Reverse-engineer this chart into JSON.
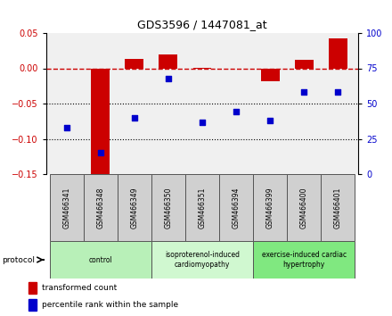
{
  "title": "GDS3596 / 1447081_at",
  "samples": [
    "GSM466341",
    "GSM466348",
    "GSM466349",
    "GSM466350",
    "GSM466351",
    "GSM466394",
    "GSM466399",
    "GSM466400",
    "GSM466401"
  ],
  "bar_values": [
    0.0,
    -0.155,
    0.013,
    0.02,
    0.001,
    -0.001,
    -0.018,
    0.012,
    0.043
  ],
  "dot_values": [
    33,
    15,
    40,
    68,
    37,
    44,
    38,
    58,
    58
  ],
  "groups": [
    {
      "label": "control",
      "start": 0,
      "end": 3,
      "color": "#b8f0b8"
    },
    {
      "label": "isoproterenol-induced\ncardiomyopathy",
      "start": 3,
      "end": 6,
      "color": "#d0f8d0"
    },
    {
      "label": "exercise-induced cardiac\nhypertrophy",
      "start": 6,
      "end": 9,
      "color": "#80e880"
    }
  ],
  "ylim_left": [
    -0.15,
    0.05
  ],
  "ylim_right": [
    0,
    100
  ],
  "yticks_left": [
    -0.15,
    -0.1,
    -0.05,
    0.0,
    0.05
  ],
  "yticks_right": [
    0,
    25,
    50,
    75,
    100
  ],
  "bar_color": "#cc0000",
  "dot_color": "#0000cc",
  "hline_color": "#cc0000",
  "bg_color": "#ffffff",
  "plot_bg": "#f0f0f0",
  "legend_bar_label": "transformed count",
  "legend_dot_label": "percentile rank within the sample",
  "protocol_label": "protocol",
  "sample_box_color": "#d0d0d0"
}
